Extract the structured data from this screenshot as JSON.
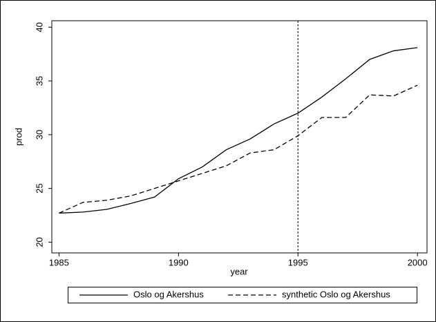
{
  "chart_data": {
    "type": "line",
    "x": [
      1985,
      1986,
      1987,
      1988,
      1989,
      1990,
      1991,
      1992,
      1993,
      1994,
      1995,
      1996,
      1997,
      1998,
      1999,
      2000
    ],
    "series": [
      {
        "name": "Oslo og Akershus",
        "color": "#000000",
        "style": "solid",
        "values": [
          22.7,
          22.8,
          23.05,
          23.6,
          24.2,
          25.9,
          27.0,
          28.6,
          29.6,
          31.0,
          32.0,
          33.5,
          35.2,
          37.0,
          37.8,
          38.1
        ]
      },
      {
        "name": "synthetic Oslo og Akershus",
        "color": "#000000",
        "style": "dashed",
        "values": [
          22.7,
          23.7,
          23.9,
          24.3,
          25.0,
          25.7,
          26.4,
          27.1,
          28.3,
          28.6,
          29.9,
          31.6,
          31.6,
          33.7,
          33.6,
          34.6
        ]
      }
    ],
    "xlabel": "year",
    "ylabel": "prod",
    "xlim": [
      1984.7,
      2000.4
    ],
    "xticks": [
      1985,
      1990,
      1995,
      2000
    ],
    "ylim": [
      19,
      40.6
    ],
    "yticks": [
      20,
      25,
      30,
      35,
      40
    ],
    "vline": 1995,
    "grid": false,
    "legend": "bottom"
  }
}
